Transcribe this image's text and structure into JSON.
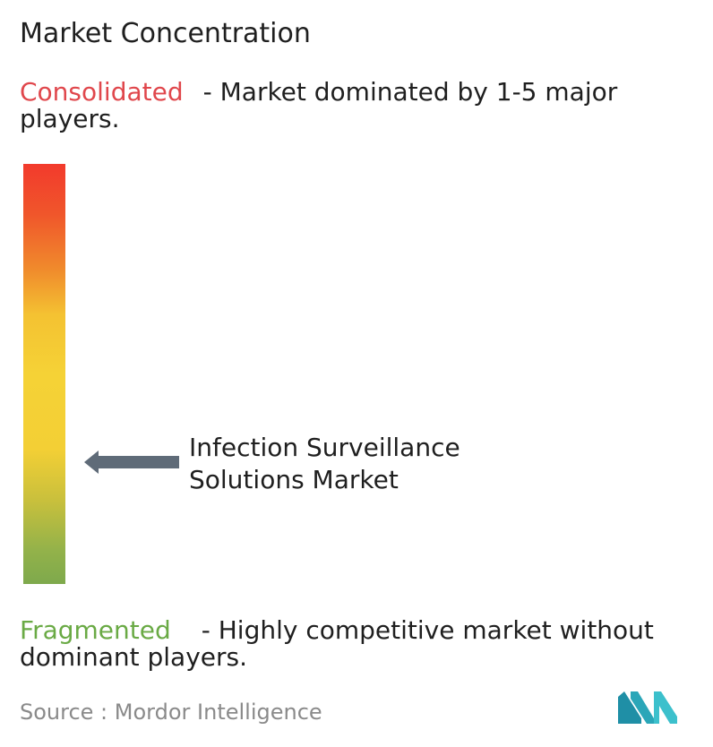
{
  "title": "Market Concentration",
  "consolidated": {
    "label": "Consolidated",
    "description": "- Market dominated by 1-5 major players."
  },
  "fragmented": {
    "label": "Fragmented",
    "description": "- Highly competitive market without dominant players."
  },
  "market": {
    "line1": "Infection Surveillance",
    "line2": "Solutions Market"
  },
  "source": "Source :  Mordor Intelligence",
  "colors": {
    "consolidated": "#e0474c",
    "fragmented": "#6aaa45",
    "scale_top": "#f23a2c",
    "scale_middle": "#f5d236",
    "scale_bottom": "#7ea94c",
    "arrow": "#5f6b78",
    "logo_teal": "#2aa6b8"
  },
  "icons": {
    "arrow": "left-arrow-icon",
    "logo": "mordor-intelligence-logo"
  },
  "chart_data": {
    "type": "gradient-scale",
    "scale_top_label": "Consolidated",
    "scale_bottom_label": "Fragmented",
    "marker_label": "Infection Surveillance Solutions Market",
    "marker_position_from_fragmented": 0.29
  }
}
